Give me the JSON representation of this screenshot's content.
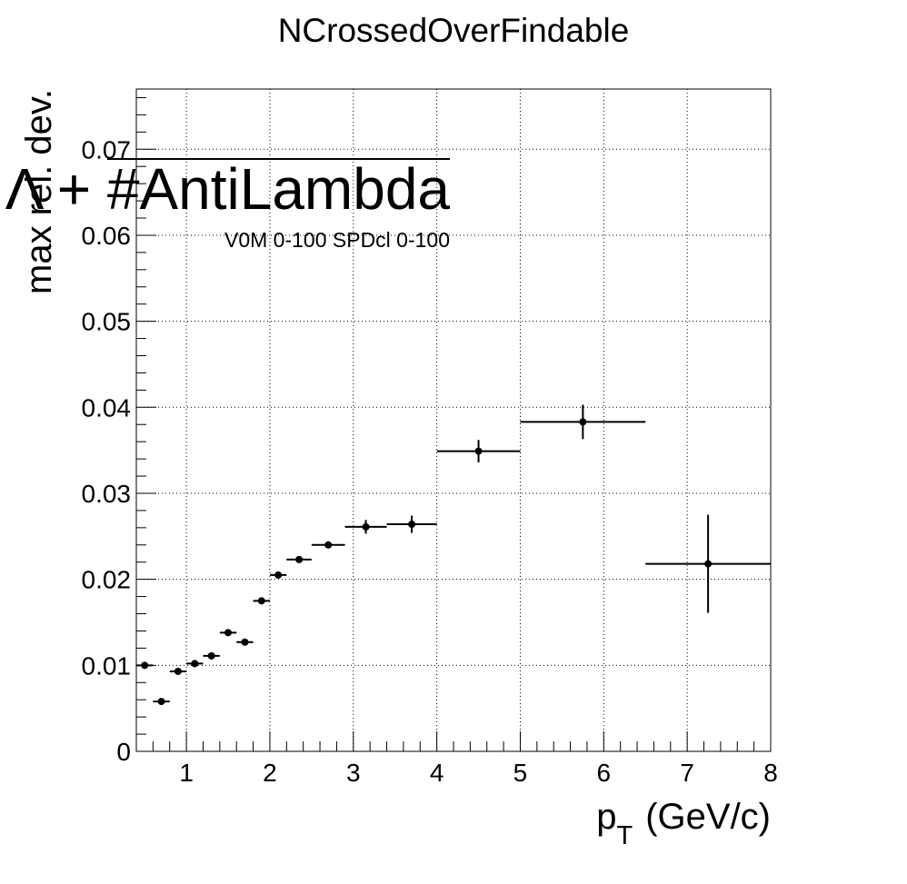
{
  "chart_data": {
    "type": "scatter",
    "title": "NCrossedOverFindable",
    "xlabel": "p",
    "xlabel_sub": "T",
    "xlabel_unit": "(GeV/c)",
    "ylabel": "max rel. dev.",
    "xlim": [
      0.4,
      8
    ],
    "ylim": [
      0,
      0.077
    ],
    "grid": true,
    "x_ticks": [
      1,
      2,
      3,
      4,
      5,
      6,
      7,
      8
    ],
    "x_tick_labels": [
      "1",
      "2",
      "3",
      "4",
      "5",
      "6",
      "7",
      "8"
    ],
    "y_ticks": [
      0,
      0.01,
      0.02,
      0.03,
      0.04,
      0.05,
      0.06,
      0.07
    ],
    "y_tick_labels": [
      "0",
      "0.01",
      "0.02",
      "0.03",
      "0.04",
      "0.05",
      "0.06",
      "0.07"
    ],
    "annotations": [
      {
        "text": "Λ + #AntiLambda",
        "role": "particle-label"
      },
      {
        "text": "V0M 0-100 SPDcl 0-100",
        "role": "selection-label"
      }
    ],
    "series": [
      {
        "points": [
          {
            "x": 0.5,
            "xlo": 0.4,
            "xhi": 0.6,
            "y": 0.01,
            "err": 0.0002
          },
          {
            "x": 0.7,
            "xlo": 0.6,
            "xhi": 0.8,
            "y": 0.0058,
            "err": 0.0002
          },
          {
            "x": 0.9,
            "xlo": 0.8,
            "xhi": 1.0,
            "y": 0.0093,
            "err": 0.0003
          },
          {
            "x": 1.1,
            "xlo": 1.0,
            "xhi": 1.2,
            "y": 0.0102,
            "err": 0.0003
          },
          {
            "x": 1.3,
            "xlo": 1.2,
            "xhi": 1.4,
            "y": 0.0111,
            "err": 0.0004
          },
          {
            "x": 1.5,
            "xlo": 1.4,
            "xhi": 1.6,
            "y": 0.0138,
            "err": 0.0003
          },
          {
            "x": 1.7,
            "xlo": 1.6,
            "xhi": 1.8,
            "y": 0.0127,
            "err": 0.0004
          },
          {
            "x": 1.9,
            "xlo": 1.8,
            "xhi": 2.0,
            "y": 0.0175,
            "err": 0.0002
          },
          {
            "x": 2.1,
            "xlo": 2.0,
            "xhi": 2.2,
            "y": 0.0205,
            "err": 0.0002
          },
          {
            "x": 2.35,
            "xlo": 2.2,
            "xhi": 2.5,
            "y": 0.0223,
            "err": 0.0002
          },
          {
            "x": 2.7,
            "xlo": 2.5,
            "xhi": 2.9,
            "y": 0.024,
            "err": 0.0003
          },
          {
            "x": 3.15,
            "xlo": 2.9,
            "xhi": 3.4,
            "y": 0.0261,
            "err": 0.0008
          },
          {
            "x": 3.7,
            "xlo": 3.4,
            "xhi": 4.0,
            "y": 0.0264,
            "err": 0.001
          },
          {
            "x": 4.5,
            "xlo": 4.0,
            "xhi": 5.0,
            "y": 0.0349,
            "err": 0.0013
          },
          {
            "x": 5.75,
            "xlo": 5.0,
            "xhi": 6.5,
            "y": 0.0383,
            "err": 0.002
          },
          {
            "x": 7.25,
            "xlo": 6.5,
            "xhi": 8.0,
            "y": 0.0218,
            "err": 0.0057
          }
        ]
      }
    ]
  }
}
